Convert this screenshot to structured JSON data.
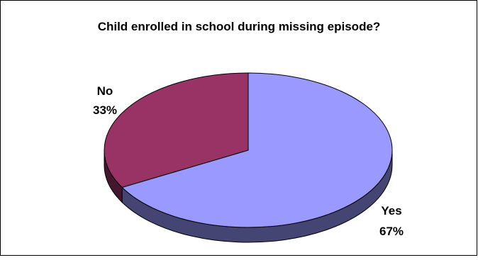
{
  "chart_data": {
    "type": "pie",
    "title": "Child enrolled in school during missing episode?",
    "categories": [
      "Yes",
      "No"
    ],
    "values": [
      67,
      33
    ],
    "labels": [
      "Yes",
      "No"
    ],
    "percent_labels": [
      "67%",
      "33%"
    ],
    "colors": {
      "Yes": "#9999ff",
      "No": "#993366"
    },
    "legend": "none",
    "style": "3d"
  }
}
